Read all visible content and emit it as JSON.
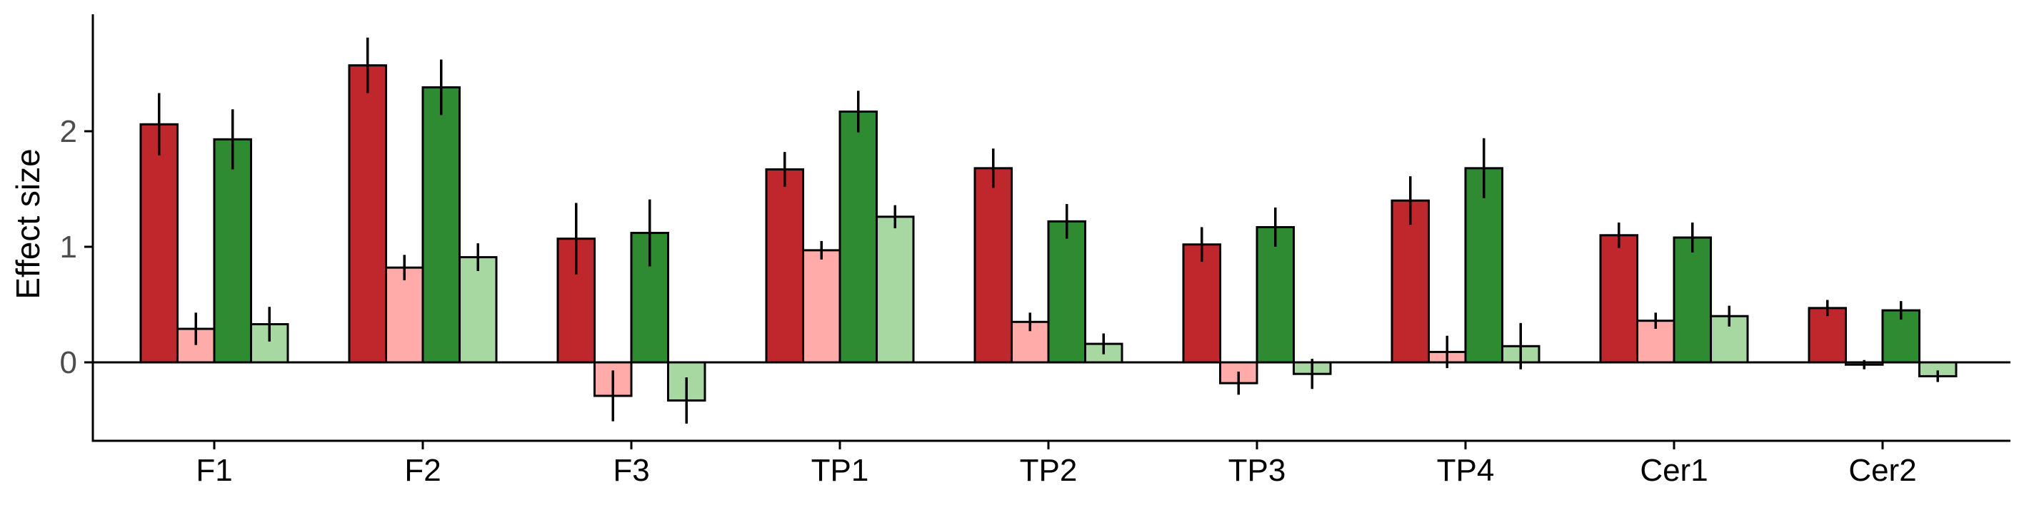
{
  "chart_data": {
    "type": "bar",
    "title": "",
    "xlabel": "",
    "ylabel": "Effect size",
    "ylim": [
      -0.68,
      2.98
    ],
    "yticks": [
      0,
      1,
      2
    ],
    "legend": "none",
    "grid": false,
    "categories": [
      "F1",
      "F2",
      "F3",
      "TP1",
      "TP2",
      "TP3",
      "TP4",
      "Cer1",
      "Cer2"
    ],
    "series": [
      {
        "color": "#c0272d",
        "values": [
          2.06,
          2.57,
          1.07,
          1.67,
          1.68,
          1.02,
          1.4,
          1.1,
          0.47
        ],
        "err": [
          0.27,
          0.24,
          0.31,
          0.15,
          0.17,
          0.15,
          0.21,
          0.11,
          0.07
        ]
      },
      {
        "color": "#ffabaa",
        "values": [
          0.29,
          0.82,
          -0.29,
          0.97,
          0.35,
          -0.18,
          0.09,
          0.36,
          -0.02
        ],
        "err": [
          0.14,
          0.11,
          0.22,
          0.08,
          0.08,
          0.1,
          0.14,
          0.07,
          0.04
        ]
      },
      {
        "color": "#2e8b32",
        "values": [
          1.93,
          2.38,
          1.12,
          2.17,
          1.22,
          1.17,
          1.68,
          1.08,
          0.45
        ],
        "err": [
          0.26,
          0.24,
          0.29,
          0.18,
          0.15,
          0.17,
          0.26,
          0.13,
          0.08
        ]
      },
      {
        "color": "#a8d8a2",
        "values": [
          0.33,
          0.91,
          -0.33,
          1.26,
          0.16,
          -0.1,
          0.14,
          0.4,
          -0.12
        ],
        "err": [
          0.15,
          0.12,
          0.2,
          0.1,
          0.09,
          0.13,
          0.2,
          0.09,
          0.05
        ]
      }
    ]
  }
}
